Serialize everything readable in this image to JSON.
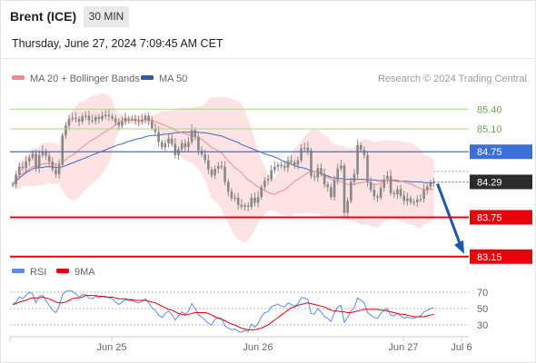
{
  "header": {
    "instrument": "Brent (ICE)",
    "timeframe": "30 MIN",
    "datetime": "Thursday, June 27, 2024 7:09:45 AM CET"
  },
  "legend": {
    "ma20": "MA 20 + Bollinger Bands",
    "ma50": "MA 50",
    "copyright": "Research © 2024 Trading Central",
    "rsi": "RSI",
    "ma9": "9MA"
  },
  "colors": {
    "ma20": "#f08c8c",
    "bollinger_fill": "#fde3e3",
    "ma50": "#3d68c4",
    "candle": "#888888",
    "resistance_green": "#a8d88a",
    "resistance_blue": "#3d6fd8",
    "support_red": "#e8000b",
    "current_price": "#2b2b2b",
    "arrow": "#1c5aa6",
    "rsi": "#5b8de0",
    "ma9": "#e8000b"
  },
  "chart_data": [
    {
      "type": "candlestick",
      "x_labels": [
        "Jun 25",
        "Jun 26",
        "Jun 27",
        "Jul 6"
      ],
      "ylim": [
        83.05,
        85.75
      ],
      "levels": [
        {
          "label": "85.40",
          "value": 85.4,
          "kind": "resistance-green"
        },
        {
          "label": "85.10",
          "value": 85.1,
          "kind": "resistance-green"
        },
        {
          "label": "84.75",
          "value": 84.75,
          "kind": "resistance-blue"
        },
        {
          "label": "83.75",
          "value": 83.75,
          "kind": "support-red"
        },
        {
          "label": "83.15",
          "value": 83.15,
          "kind": "support-red"
        }
      ],
      "current_price": {
        "label": "84.29",
        "value": 84.29
      },
      "forecast_arrow": {
        "from": 84.29,
        "to": 83.15
      },
      "close": [
        84.25,
        84.4,
        84.52,
        84.5,
        84.6,
        84.66,
        84.72,
        84.5,
        84.7,
        84.76,
        84.69,
        84.6,
        84.48,
        84.41,
        84.55,
        85.0,
        85.15,
        85.25,
        85.27,
        85.25,
        85.21,
        85.29,
        85.3,
        85.23,
        85.22,
        85.28,
        85.25,
        85.3,
        85.31,
        85.29,
        85.26,
        85.2,
        85.15,
        85.21,
        85.26,
        85.25,
        85.25,
        85.22,
        85.21,
        85.24,
        85.3,
        85.22,
        85.11,
        85.05,
        84.9,
        84.82,
        84.88,
        84.95,
        84.87,
        84.7,
        84.79,
        84.88,
        84.82,
        84.9,
        85.08,
        84.98,
        84.77,
        84.71,
        84.62,
        84.48,
        84.39,
        84.49,
        84.53,
        84.52,
        84.29,
        84.14,
        84.04,
        84.05,
        83.94,
        83.91,
        83.93,
        83.91,
        84.05,
        83.97,
        84.06,
        84.21,
        84.31,
        84.33,
        84.47,
        84.52,
        84.55,
        84.53,
        84.51,
        84.61,
        84.59,
        84.55,
        84.62,
        84.8,
        84.81,
        84.77,
        84.38,
        84.36,
        84.5,
        84.41,
        84.25,
        84.21,
        84.06,
        84.32,
        84.49,
        84.54,
        83.82,
        84.0,
        84.29,
        84.41,
        84.85,
        84.78,
        84.7,
        84.29,
        84.17,
        84.07,
        84.05,
        84.2,
        84.33,
        84.38,
        84.12,
        84.1,
        84.18,
        84.08,
        84.0,
        84.04,
        83.98,
        83.98,
        84.02,
        84.03,
        84.17,
        84.22,
        84.27,
        84.29
      ],
      "ma20": [
        84.25,
        84.32,
        84.39,
        84.42,
        84.45,
        84.49,
        84.52,
        84.52,
        84.54,
        84.56,
        84.57,
        84.58,
        84.57,
        84.56,
        84.56,
        84.59,
        84.63,
        84.67,
        84.7,
        84.73,
        84.78,
        84.82,
        84.86,
        84.9,
        84.93,
        84.96,
        84.99,
        85.03,
        85.06,
        85.09,
        85.12,
        85.17,
        85.2,
        85.23,
        85.26,
        85.22,
        85.24,
        85.24,
        85.23,
        85.23,
        85.24,
        85.24,
        85.23,
        85.22,
        85.19,
        85.17,
        85.15,
        85.13,
        85.11,
        85.08,
        85.06,
        85.04,
        85.02,
        85.01,
        85.0,
        84.98,
        84.96,
        84.94,
        84.9,
        84.86,
        84.81,
        84.79,
        84.76,
        84.73,
        84.67,
        84.61,
        84.56,
        84.51,
        84.47,
        84.43,
        84.37,
        84.32,
        84.29,
        84.25,
        84.21,
        84.18,
        84.16,
        84.13,
        84.11,
        84.1,
        84.13,
        84.15,
        84.17,
        84.21,
        84.25,
        84.3,
        84.33,
        84.36,
        84.4,
        84.43,
        84.45,
        84.45,
        84.44,
        84.41,
        84.38,
        84.36,
        84.33,
        84.31,
        84.3,
        84.3,
        84.27,
        84.25,
        84.25,
        84.25,
        84.27,
        84.28,
        84.29,
        84.29,
        84.27,
        84.25,
        84.25,
        84.27,
        84.31,
        84.31,
        84.32,
        84.32,
        84.32,
        84.3,
        84.29,
        84.27,
        84.26,
        84.24,
        84.21,
        84.19,
        84.17,
        84.17,
        84.18,
        84.18
      ],
      "bb_upper": [
        84.25,
        84.47,
        84.6,
        84.62,
        84.68,
        84.75,
        84.82,
        84.8,
        84.84,
        84.88,
        84.88,
        84.89,
        84.88,
        84.87,
        84.86,
        85.02,
        85.19,
        85.3,
        85.39,
        85.44,
        85.5,
        85.52,
        85.54,
        85.58,
        85.6,
        85.61,
        85.63,
        85.64,
        85.63,
        85.61,
        85.54,
        85.41,
        85.34,
        85.32,
        85.32,
        85.26,
        85.31,
        85.31,
        85.31,
        85.3,
        85.3,
        85.3,
        85.31,
        85.32,
        85.34,
        85.37,
        85.37,
        85.38,
        85.38,
        85.41,
        85.42,
        85.42,
        85.42,
        85.42,
        85.42,
        85.43,
        85.44,
        85.45,
        85.49,
        85.55,
        85.58,
        85.58,
        85.58,
        85.59,
        85.59,
        85.57,
        85.56,
        85.55,
        85.52,
        85.48,
        85.39,
        85.24,
        85.11,
        84.94,
        84.75,
        84.62,
        84.53,
        84.41,
        84.37,
        84.34,
        84.44,
        84.51,
        84.56,
        84.65,
        84.73,
        84.8,
        84.85,
        84.91,
        84.98,
        85.04,
        85.09,
        85.09,
        85.08,
        85.04,
        85.0,
        84.98,
        84.91,
        84.87,
        84.85,
        84.84,
        84.84,
        84.81,
        84.81,
        84.8,
        84.88,
        84.92,
        84.94,
        84.94,
        84.92,
        84.9,
        84.91,
        84.91,
        84.93,
        84.93,
        84.92,
        84.92,
        84.92,
        84.91,
        84.9,
        84.9,
        84.88,
        84.86,
        84.83,
        84.8,
        84.7,
        84.69,
        84.67,
        84.63
      ],
      "bb_lower": [
        84.25,
        84.17,
        84.18,
        84.22,
        84.22,
        84.23,
        84.22,
        84.24,
        84.24,
        84.24,
        84.26,
        84.27,
        84.26,
        84.25,
        84.26,
        84.16,
        84.07,
        84.04,
        84.01,
        84.02,
        84.06,
        84.12,
        84.18,
        84.22,
        84.26,
        84.31,
        84.35,
        84.42,
        84.49,
        84.57,
        84.7,
        84.93,
        85.06,
        85.14,
        85.2,
        85.18,
        85.17,
        85.17,
        85.15,
        85.16,
        85.18,
        85.18,
        85.15,
        85.12,
        85.04,
        84.97,
        84.93,
        84.88,
        84.84,
        84.75,
        84.7,
        84.66,
        84.62,
        84.6,
        84.58,
        84.53,
        84.48,
        84.43,
        84.31,
        84.17,
        84.04,
        84.0,
        83.94,
        83.87,
        83.75,
        83.65,
        83.56,
        83.47,
        83.42,
        83.38,
        83.35,
        83.4,
        83.47,
        83.56,
        83.67,
        83.74,
        83.79,
        83.85,
        83.85,
        83.86,
        83.82,
        83.79,
        83.78,
        83.77,
        83.77,
        83.8,
        83.81,
        83.81,
        83.82,
        83.82,
        83.81,
        83.81,
        83.8,
        83.78,
        83.76,
        83.74,
        83.75,
        83.75,
        83.75,
        83.76,
        83.7,
        83.69,
        83.69,
        83.7,
        83.66,
        83.64,
        83.64,
        83.64,
        83.62,
        83.6,
        83.59,
        83.63,
        83.69,
        83.69,
        83.72,
        83.72,
        83.72,
        83.69,
        83.68,
        83.64,
        83.64,
        83.62,
        83.59,
        83.58,
        83.64,
        83.65,
        83.69,
        83.73
      ],
      "ma50": [
        84.25,
        84.3,
        84.35,
        84.39,
        84.43,
        84.46,
        84.49,
        84.5,
        84.51,
        84.51,
        84.52,
        84.52,
        84.52,
        84.51,
        84.51,
        84.52,
        84.54,
        84.56,
        84.58,
        84.6,
        84.62,
        84.64,
        84.66,
        84.68,
        84.7,
        84.72,
        84.74,
        84.76,
        84.78,
        84.8,
        84.82,
        84.84,
        84.86,
        84.87,
        84.89,
        84.91,
        84.92,
        84.94,
        84.95,
        84.96,
        84.98,
        84.99,
        85.0,
        85.0,
        85.0,
        85.01,
        85.02,
        85.02,
        85.03,
        85.04,
        85.04,
        85.05,
        85.05,
        85.05,
        85.05,
        85.05,
        85.05,
        85.04,
        85.04,
        85.03,
        85.02,
        85.01,
        85.0,
        84.99,
        84.97,
        84.95,
        84.93,
        84.91,
        84.89,
        84.86,
        84.84,
        84.82,
        84.8,
        84.78,
        84.76,
        84.74,
        84.72,
        84.7,
        84.69,
        84.67,
        84.65,
        84.62,
        84.6,
        84.58,
        84.56,
        84.54,
        84.52,
        84.51,
        84.5,
        84.48,
        84.46,
        84.45,
        84.44,
        84.42,
        84.4,
        84.38,
        84.36,
        84.35,
        84.34,
        84.34,
        84.33,
        84.33,
        84.33,
        84.33,
        84.33,
        84.33,
        84.33,
        84.32,
        84.32,
        84.32,
        84.31,
        84.31,
        84.31,
        84.31,
        84.31,
        84.31,
        84.3,
        84.3,
        84.3,
        84.3,
        84.29,
        84.29,
        84.29,
        84.29,
        84.28,
        84.28,
        84.28,
        84.28
      ]
    },
    {
      "type": "line",
      "legend": [
        "RSI",
        "9MA"
      ],
      "y_ticks": [
        "70",
        "50",
        "30"
      ],
      "ylim": [
        20,
        80
      ],
      "series": [
        {
          "name": "RSI",
          "values": [
            55,
            58,
            64,
            62,
            66,
            70,
            68,
            57,
            65,
            66,
            60,
            54,
            48,
            45,
            53,
            67,
            71,
            72,
            71,
            68,
            64,
            67,
            67,
            63,
            62,
            65,
            63,
            65,
            65,
            63,
            62,
            58,
            55,
            58,
            61,
            60,
            60,
            58,
            57,
            59,
            62,
            57,
            51,
            48,
            42,
            39,
            44,
            47,
            43,
            36,
            41,
            46,
            43,
            47,
            56,
            50,
            42,
            40,
            36,
            32,
            30,
            37,
            39,
            38,
            29,
            26,
            24,
            25,
            22,
            21,
            23,
            22,
            31,
            27,
            32,
            40,
            45,
            46,
            52,
            54,
            55,
            53,
            52,
            57,
            55,
            53,
            56,
            63,
            63,
            61,
            44,
            43,
            50,
            46,
            40,
            38,
            34,
            45,
            52,
            54,
            33,
            39,
            47,
            51,
            63,
            60,
            57,
            45,
            42,
            39,
            38,
            44,
            48,
            50,
            42,
            41,
            44,
            41,
            38,
            40,
            38,
            38,
            40,
            41,
            46,
            48,
            50,
            51
          ]
        },
        {
          "name": "9MA",
          "values": [
            55,
            56,
            58,
            59,
            60,
            62,
            63,
            63,
            63,
            64,
            63,
            62,
            60,
            58,
            57,
            57,
            58,
            60,
            62,
            63,
            63,
            64,
            66,
            66,
            66,
            66,
            65,
            65,
            64,
            64,
            64,
            63,
            62,
            62,
            62,
            61,
            61,
            60,
            60,
            60,
            60,
            59,
            58,
            57,
            55,
            53,
            51,
            49,
            48,
            46,
            44,
            43,
            42,
            43,
            44,
            45,
            45,
            45,
            45,
            44,
            42,
            40,
            38,
            37,
            35,
            33,
            31,
            30,
            28,
            26,
            25,
            24,
            24,
            24,
            25,
            26,
            28,
            30,
            33,
            36,
            39,
            42,
            45,
            48,
            51,
            52,
            54,
            55,
            56,
            57,
            56,
            55,
            54,
            53,
            52,
            50,
            48,
            47,
            47,
            46,
            46,
            45,
            45,
            46,
            47,
            48,
            49,
            49,
            49,
            49,
            49,
            48,
            48,
            47,
            46,
            45,
            44,
            43,
            43,
            42,
            41,
            40,
            40,
            40,
            40,
            41,
            42,
            43
          ]
        }
      ]
    }
  ]
}
